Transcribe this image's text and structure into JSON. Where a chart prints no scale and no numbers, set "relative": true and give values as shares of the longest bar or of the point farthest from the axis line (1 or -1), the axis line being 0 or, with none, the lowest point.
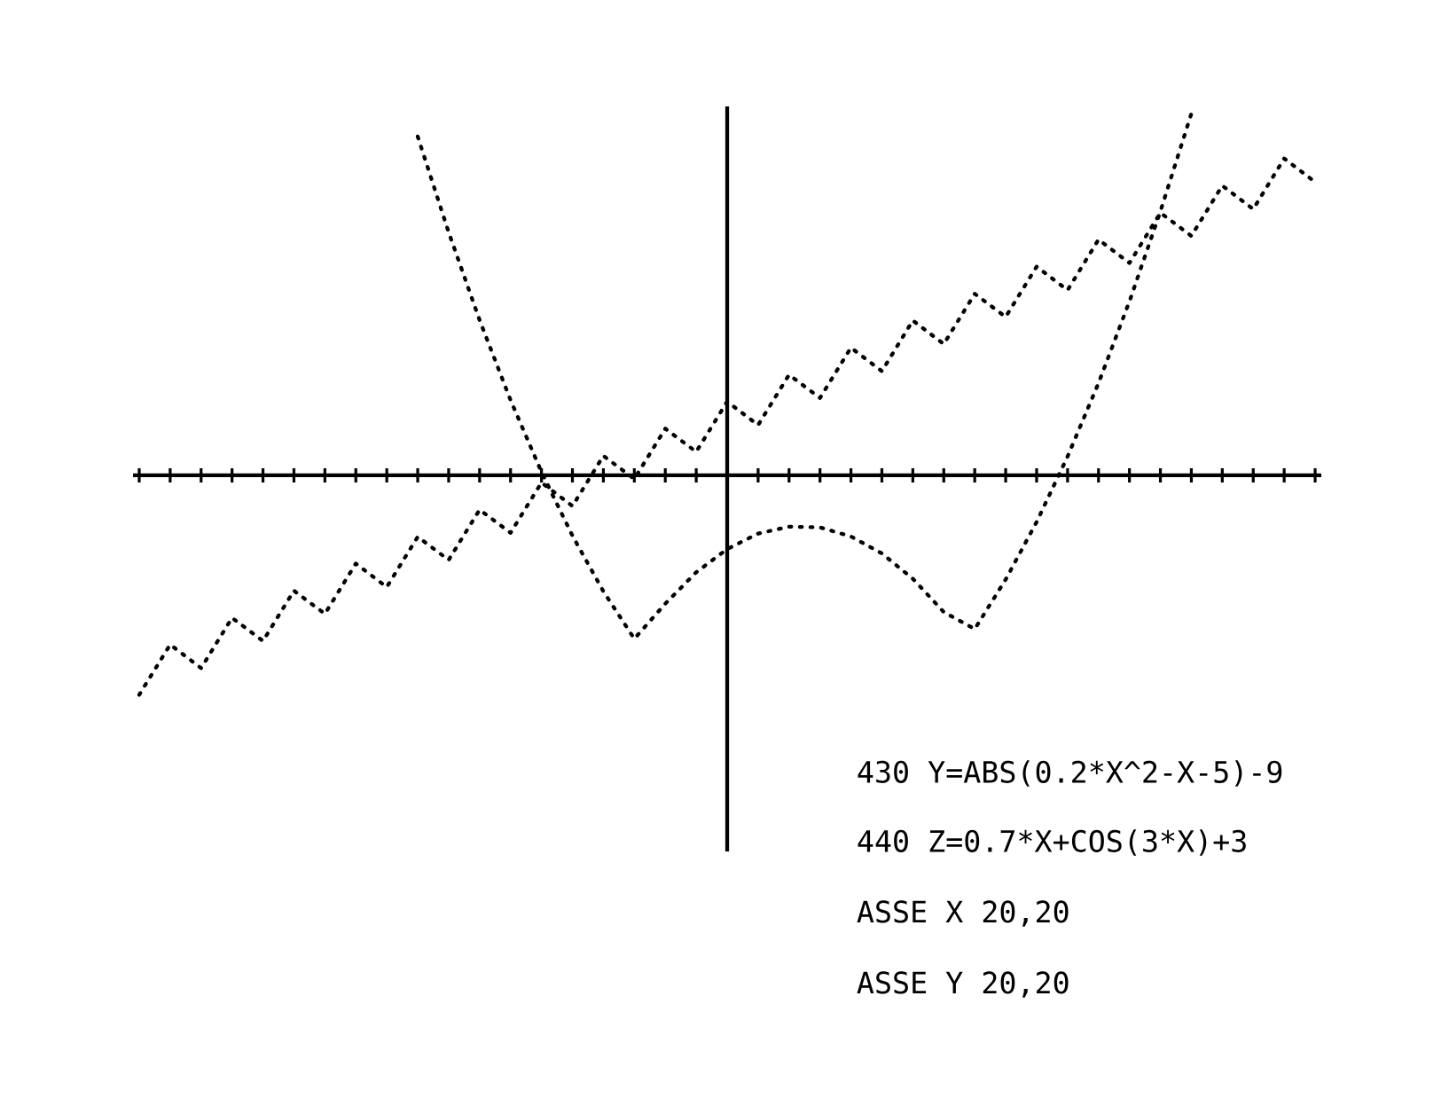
{
  "chart_data": {
    "type": "line",
    "relative": true,
    "line_style": "dotted",
    "categories": [
      null,
      null,
      null,
      null,
      null,
      null,
      null,
      null,
      null,
      null,
      null,
      null,
      null,
      null,
      null,
      null,
      null,
      null,
      null,
      null,
      null,
      null,
      null,
      null,
      null,
      null,
      null,
      null,
      null,
      null,
      null,
      null,
      null,
      null,
      null,
      null,
      null,
      null,
      null
    ],
    "series": [
      {
        "color": "#000000",
        "values": [
          null,
          null,
          null,
          null,
          null,
          null,
          null,
          null,
          null,
          0.937,
          0.672,
          0.429,
          0.208,
          0.009,
          -0.167,
          -0.321,
          -0.452,
          -0.355,
          -0.268,
          -0.204,
          -0.161,
          -0.142,
          -0.144,
          -0.169,
          -0.216,
          -0.286,
          -0.378,
          -0.425,
          -0.288,
          -0.129,
          0.052,
          0.255,
          0.481,
          0.73,
          1.0,
          null,
          null,
          null,
          null
        ]
      },
      {
        "color": "#000000",
        "values": [
          -0.607,
          -0.468,
          -0.533,
          -0.394,
          -0.458,
          -0.319,
          -0.383,
          -0.244,
          -0.309,
          -0.17,
          -0.234,
          -0.095,
          -0.159,
          -0.02,
          -0.085,
          0.054,
          -0.01,
          0.129,
          0.065,
          0.204,
          0.139,
          0.278,
          0.214,
          0.353,
          0.288,
          0.428,
          0.363,
          0.502,
          0.438,
          0.577,
          0.512,
          0.652,
          0.587,
          0.726,
          0.662,
          0.801,
          0.736,
          0.876,
          0.811
        ]
      }
    ],
    "annotations": [
      "430 Y=ABS(0.2*X^2-X-5)-9",
      "440 Z=0.7*X+COS(3*X)+3",
      "ASSE  X 20,20",
      "ASSE  Y 20,20"
    ]
  }
}
